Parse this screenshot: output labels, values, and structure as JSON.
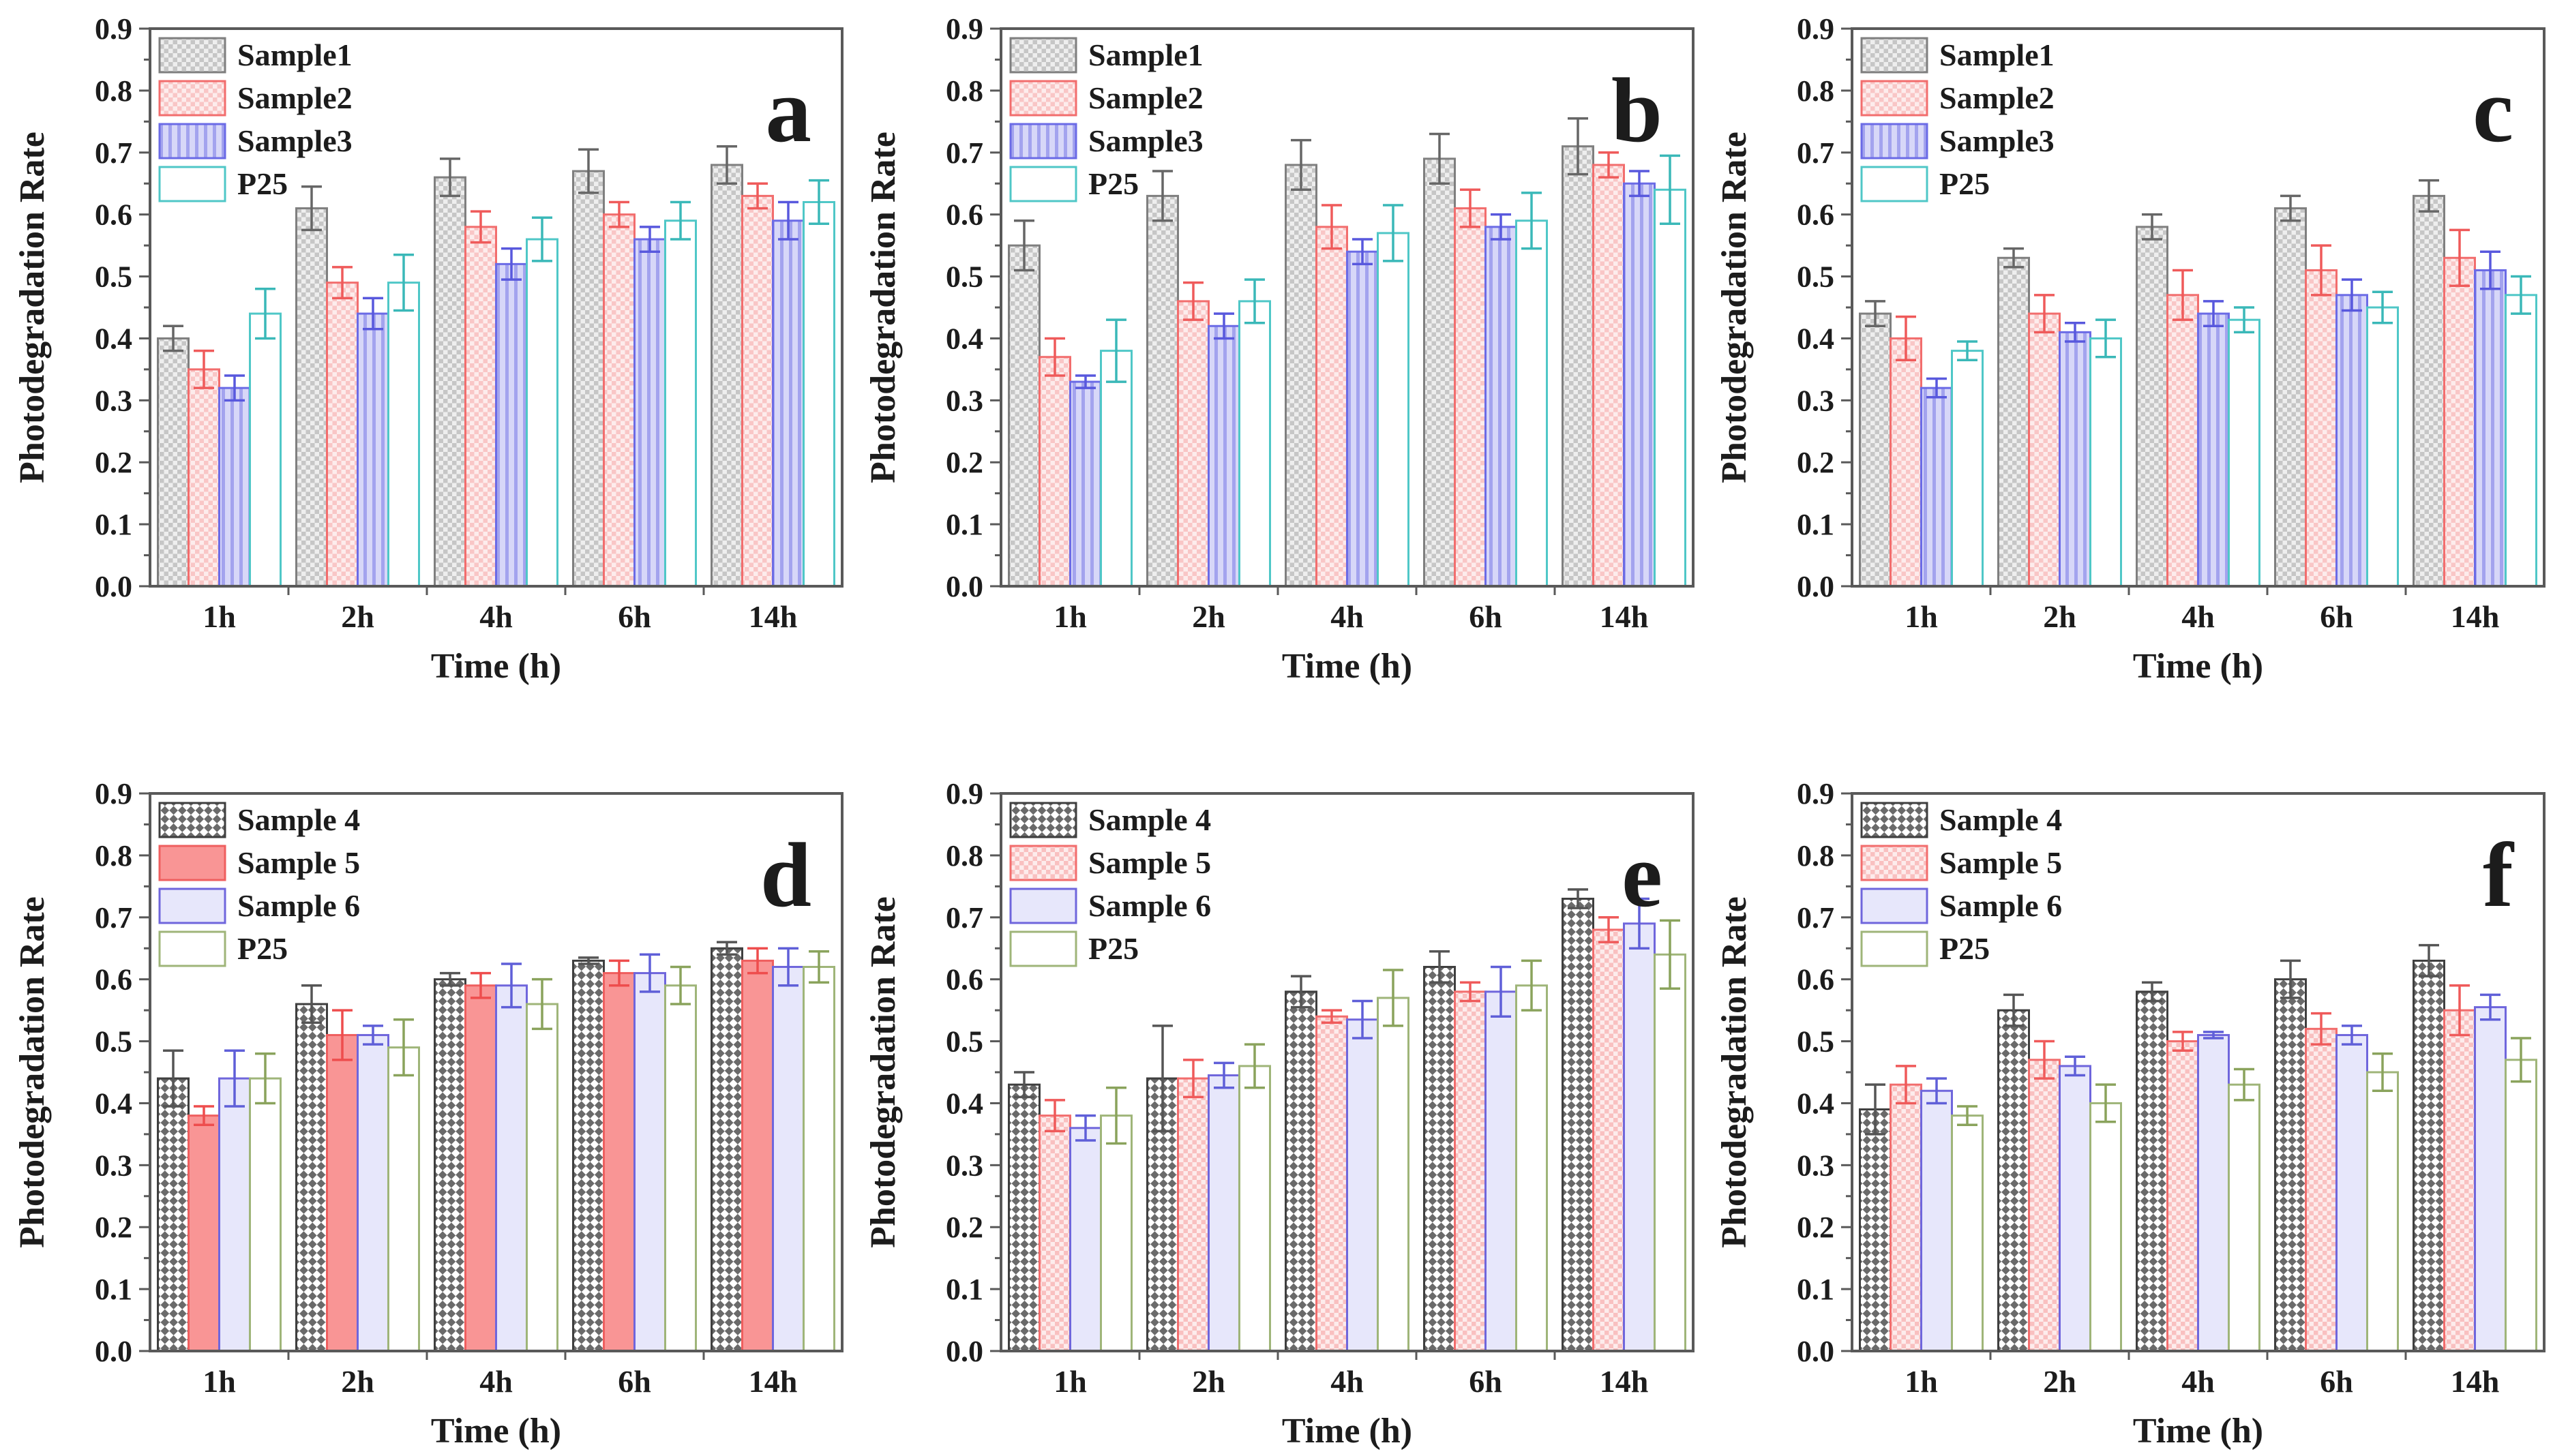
{
  "figure": {
    "background": "#ffffff",
    "axis_color": "#595959",
    "text_color": "#1c1c1c",
    "ylabel": "Photodegradation Rate",
    "xlabel": "Time (h)",
    "categories": [
      "1h",
      "2h",
      "4h",
      "6h",
      "14h"
    ],
    "ytick_labels": [
      "0.0",
      "0.1",
      "0.2",
      "0.3",
      "0.4",
      "0.5",
      "0.6",
      "0.7",
      "0.8",
      "0.9"
    ]
  },
  "styles": {
    "sample1": {
      "border": "#7f7f7f",
      "err": "#666666",
      "fill_type": "checker",
      "fill_colors": [
        "#c6c6c6",
        "#eeeeee"
      ],
      "cell": 13,
      "rotate": 0
    },
    "sample2": {
      "border": "#f26d6d",
      "err": "#ef5a5a",
      "fill_type": "checker",
      "fill_colors": [
        "#f9c6c6",
        "#fdecec"
      ],
      "cell": 13,
      "rotate": 0
    },
    "sample3": {
      "border": "#6b6be6",
      "err": "#5858dd",
      "fill_type": "vstripes",
      "fill_colors": [
        "#d7d7f8",
        "#a3a3ee"
      ],
      "cell": 13,
      "rotate": 0
    },
    "p25_teal": {
      "border": "#4fc7c7",
      "err": "#3ab8b8",
      "fill_type": "solid",
      "fill_colors": [
        "#ffffff"
      ],
      "cell": 0,
      "rotate": 0
    },
    "sample4": {
      "border": "#3f3f3f",
      "err": "#555555",
      "fill_type": "checker",
      "fill_colors": [
        "#6a6a6a",
        "#ffffff"
      ],
      "cell": 18,
      "rotate": 45
    },
    "sample5_solid": {
      "border": "#ef5f5f",
      "err": "#ee4d4d",
      "fill_type": "solid",
      "fill_colors": [
        "#f99595"
      ],
      "cell": 0,
      "rotate": 0
    },
    "sample5": {
      "border": "#f26d6d",
      "err": "#ef5a5a",
      "fill_type": "checker",
      "fill_colors": [
        "#f9c0c0",
        "#fdecec"
      ],
      "cell": 13,
      "rotate": 0
    },
    "sample6": {
      "border": "#6f66dc",
      "err": "#5f5fd8",
      "fill_type": "solid",
      "fill_colors": [
        "#e7e7fb"
      ],
      "cell": 0,
      "rotate": 0
    },
    "p25_green": {
      "border": "#9fb579",
      "err": "#8aa35c",
      "fill_type": "solid",
      "fill_colors": [
        "#ffffff"
      ],
      "cell": 0,
      "rotate": 0
    }
  },
  "chart_data": [
    {
      "type": "bar",
      "panel": "a",
      "title": "a",
      "xlabel": "Time (h)",
      "ylabel": "Photodegradation Rate",
      "ylim": [
        0,
        0.9
      ],
      "ytick_step": 0.1,
      "grid": false,
      "legend_position": "upper-left",
      "categories": [
        "1h",
        "2h",
        "4h",
        "6h",
        "14h"
      ],
      "series": [
        {
          "name": "Sample1",
          "style": "sample1",
          "values": [
            0.4,
            0.61,
            0.66,
            0.67,
            0.68
          ],
          "errors": [
            0.02,
            0.035,
            0.03,
            0.035,
            0.03
          ]
        },
        {
          "name": "Sample2",
          "style": "sample2",
          "values": [
            0.35,
            0.49,
            0.58,
            0.6,
            0.63
          ],
          "errors": [
            0.03,
            0.025,
            0.025,
            0.02,
            0.02
          ]
        },
        {
          "name": "Sample3",
          "style": "sample3",
          "values": [
            0.32,
            0.44,
            0.52,
            0.56,
            0.59
          ],
          "errors": [
            0.02,
            0.025,
            0.025,
            0.02,
            0.03
          ]
        },
        {
          "name": "P25",
          "style": "p25_teal",
          "values": [
            0.44,
            0.49,
            0.56,
            0.59,
            0.62
          ],
          "errors": [
            0.04,
            0.045,
            0.035,
            0.03,
            0.035
          ]
        }
      ]
    },
    {
      "type": "bar",
      "panel": "b",
      "title": "b",
      "xlabel": "Time (h)",
      "ylabel": "Photodegradation Rate",
      "ylim": [
        0,
        0.9
      ],
      "ytick_step": 0.1,
      "grid": false,
      "legend_position": "upper-left",
      "categories": [
        "1h",
        "2h",
        "4h",
        "6h",
        "14h"
      ],
      "series": [
        {
          "name": "Sample1",
          "style": "sample1",
          "values": [
            0.55,
            0.63,
            0.68,
            0.69,
            0.71
          ],
          "errors": [
            0.04,
            0.04,
            0.04,
            0.04,
            0.045
          ]
        },
        {
          "name": "Sample2",
          "style": "sample2",
          "values": [
            0.37,
            0.46,
            0.58,
            0.61,
            0.68
          ],
          "errors": [
            0.03,
            0.03,
            0.035,
            0.03,
            0.02
          ]
        },
        {
          "name": "Sample3",
          "style": "sample3",
          "values": [
            0.33,
            0.42,
            0.54,
            0.58,
            0.65
          ],
          "errors": [
            0.01,
            0.02,
            0.02,
            0.02,
            0.02
          ]
        },
        {
          "name": "P25",
          "style": "p25_teal",
          "values": [
            0.38,
            0.46,
            0.57,
            0.59,
            0.64
          ],
          "errors": [
            0.05,
            0.035,
            0.045,
            0.045,
            0.055
          ]
        }
      ]
    },
    {
      "type": "bar",
      "panel": "c",
      "title": "c",
      "xlabel": "Time (h)",
      "ylabel": "Photodegradation Rate",
      "ylim": [
        0,
        0.9
      ],
      "ytick_step": 0.1,
      "grid": false,
      "legend_position": "upper-left",
      "categories": [
        "1h",
        "2h",
        "4h",
        "6h",
        "14h"
      ],
      "series": [
        {
          "name": "Sample1",
          "style": "sample1",
          "values": [
            0.44,
            0.53,
            0.58,
            0.61,
            0.63
          ],
          "errors": [
            0.02,
            0.015,
            0.02,
            0.02,
            0.025
          ]
        },
        {
          "name": "Sample2",
          "style": "sample2",
          "values": [
            0.4,
            0.44,
            0.47,
            0.51,
            0.53
          ],
          "errors": [
            0.035,
            0.03,
            0.04,
            0.04,
            0.045
          ]
        },
        {
          "name": "Sample3",
          "style": "sample3",
          "values": [
            0.32,
            0.41,
            0.44,
            0.47,
            0.51
          ],
          "errors": [
            0.015,
            0.015,
            0.02,
            0.025,
            0.03
          ]
        },
        {
          "name": "P25",
          "style": "p25_teal",
          "values": [
            0.38,
            0.4,
            0.43,
            0.45,
            0.47
          ],
          "errors": [
            0.015,
            0.03,
            0.02,
            0.025,
            0.03
          ]
        }
      ]
    },
    {
      "type": "bar",
      "panel": "d",
      "title": "d",
      "xlabel": "Time (h)",
      "ylabel": "Photodegradation Rate",
      "ylim": [
        0,
        0.9
      ],
      "ytick_step": 0.1,
      "grid": false,
      "legend_position": "upper-left",
      "categories": [
        "1h",
        "2h",
        "4h",
        "6h",
        "14h"
      ],
      "series": [
        {
          "name": "Sample 4",
          "style": "sample4",
          "values": [
            0.44,
            0.56,
            0.6,
            0.63,
            0.65
          ],
          "errors": [
            0.045,
            0.03,
            0.01,
            0.005,
            0.01
          ]
        },
        {
          "name": "Sample 5",
          "style": "sample5_solid",
          "values": [
            0.38,
            0.51,
            0.59,
            0.61,
            0.63
          ],
          "errors": [
            0.015,
            0.04,
            0.02,
            0.02,
            0.02
          ]
        },
        {
          "name": "Sample 6",
          "style": "sample6",
          "values": [
            0.44,
            0.51,
            0.59,
            0.61,
            0.62
          ],
          "errors": [
            0.045,
            0.015,
            0.035,
            0.03,
            0.03
          ]
        },
        {
          "name": "P25",
          "style": "p25_green",
          "values": [
            0.44,
            0.49,
            0.56,
            0.59,
            0.62
          ],
          "errors": [
            0.04,
            0.045,
            0.04,
            0.03,
            0.025
          ]
        }
      ]
    },
    {
      "type": "bar",
      "panel": "e",
      "title": "e",
      "xlabel": "Time (h)",
      "ylabel": "Photodegradation Rate",
      "ylim": [
        0,
        0.9
      ],
      "ytick_step": 0.1,
      "grid": false,
      "legend_position": "upper-left",
      "categories": [
        "1h",
        "2h",
        "4h",
        "6h",
        "14h"
      ],
      "series": [
        {
          "name": "Sample 4",
          "style": "sample4",
          "values": [
            0.43,
            0.44,
            0.58,
            0.62,
            0.73
          ],
          "errors": [
            0.02,
            0.085,
            0.025,
            0.025,
            0.015
          ]
        },
        {
          "name": "Sample 5",
          "style": "sample5",
          "values": [
            0.38,
            0.44,
            0.54,
            0.58,
            0.68
          ],
          "errors": [
            0.025,
            0.03,
            0.01,
            0.015,
            0.02
          ]
        },
        {
          "name": "Sample 6",
          "style": "sample6",
          "values": [
            0.36,
            0.445,
            0.535,
            0.58,
            0.69
          ],
          "errors": [
            0.02,
            0.02,
            0.03,
            0.04,
            0.04
          ]
        },
        {
          "name": "P25",
          "style": "p25_green",
          "values": [
            0.38,
            0.46,
            0.57,
            0.59,
            0.64
          ],
          "errors": [
            0.045,
            0.035,
            0.045,
            0.04,
            0.055
          ]
        }
      ]
    },
    {
      "type": "bar",
      "panel": "f",
      "title": "f",
      "xlabel": "Time (h)",
      "ylabel": "Photodegradation Rate",
      "ylim": [
        0,
        0.9
      ],
      "ytick_step": 0.1,
      "grid": false,
      "legend_position": "upper-left",
      "categories": [
        "1h",
        "2h",
        "4h",
        "6h",
        "14h"
      ],
      "series": [
        {
          "name": "Sample 4",
          "style": "sample4",
          "values": [
            0.39,
            0.55,
            0.58,
            0.6,
            0.63
          ],
          "errors": [
            0.04,
            0.025,
            0.015,
            0.03,
            0.025
          ]
        },
        {
          "name": "Sample 5",
          "style": "sample5",
          "values": [
            0.43,
            0.47,
            0.5,
            0.52,
            0.55
          ],
          "errors": [
            0.03,
            0.03,
            0.015,
            0.025,
            0.04
          ]
        },
        {
          "name": "Sample 6",
          "style": "sample6",
          "values": [
            0.42,
            0.46,
            0.51,
            0.51,
            0.555
          ],
          "errors": [
            0.02,
            0.015,
            0.005,
            0.015,
            0.02
          ]
        },
        {
          "name": "P25",
          "style": "p25_green",
          "values": [
            0.38,
            0.4,
            0.43,
            0.45,
            0.47
          ],
          "errors": [
            0.015,
            0.03,
            0.025,
            0.03,
            0.035
          ]
        }
      ]
    }
  ]
}
